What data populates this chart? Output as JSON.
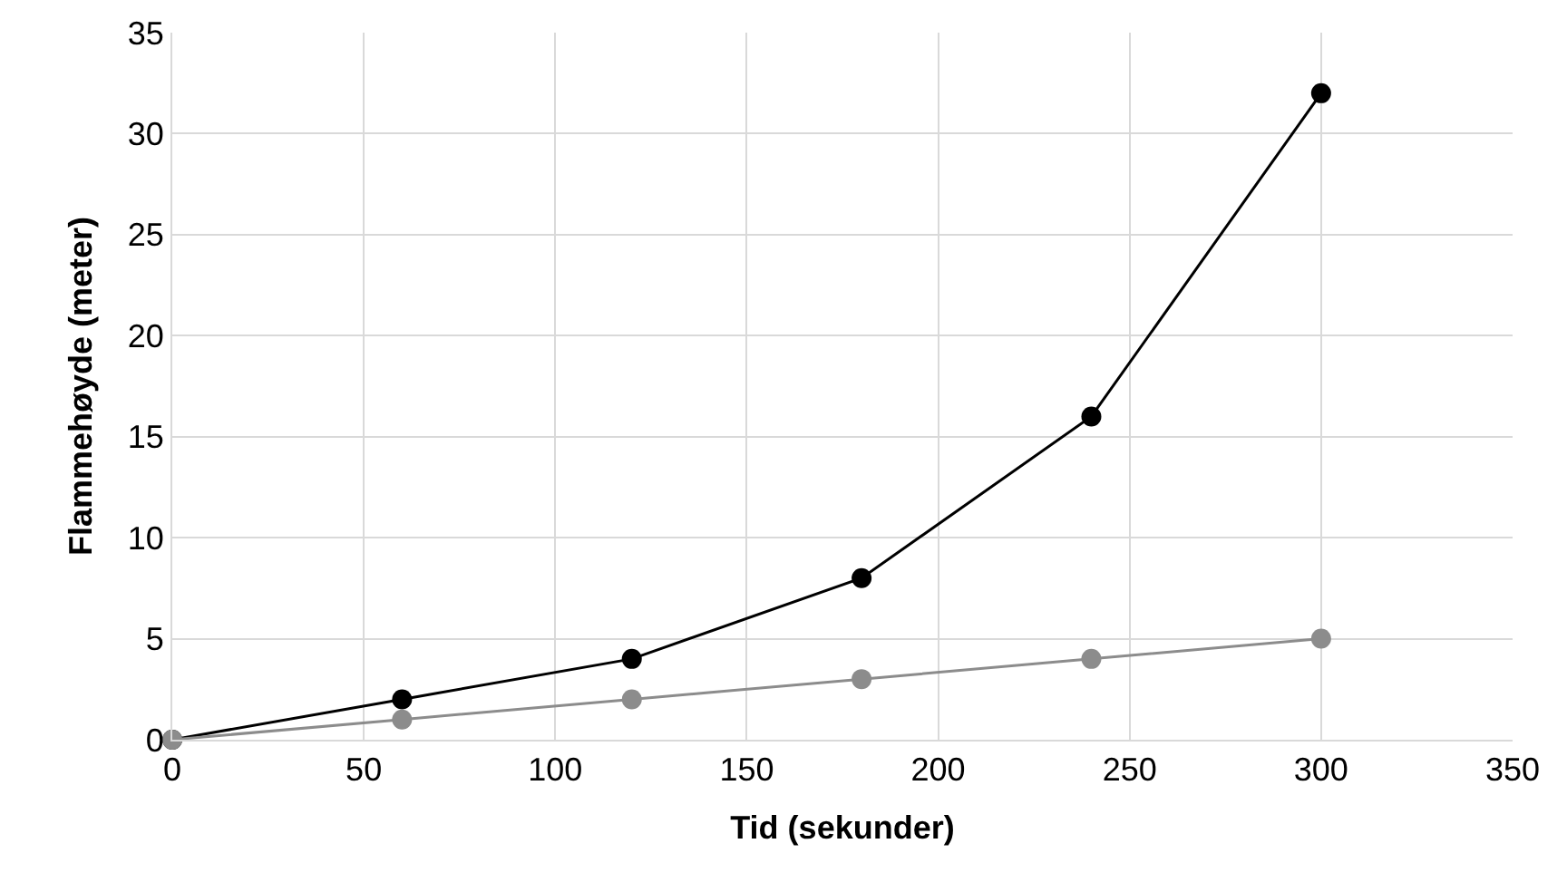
{
  "chart_data": {
    "type": "line",
    "xlabel": "Tid (sekunder)",
    "ylabel": "Flammehøyde (meter)",
    "x": [
      0,
      60,
      120,
      180,
      240,
      300
    ],
    "series": [
      {
        "color": "#000000",
        "values": [
          0,
          2,
          4,
          8,
          16,
          32
        ]
      },
      {
        "color": "#8c8c8c",
        "values": [
          0,
          1,
          2,
          3,
          4,
          5
        ]
      }
    ],
    "xlim": [
      0,
      350
    ],
    "xticks": [
      0,
      50,
      100,
      150,
      200,
      250,
      300,
      350
    ],
    "ylim": [
      0,
      35
    ],
    "yticks": [
      0,
      5,
      10,
      15,
      20,
      25,
      30,
      35
    ],
    "grid": true,
    "marker": "circle",
    "line_style": "solid"
  }
}
